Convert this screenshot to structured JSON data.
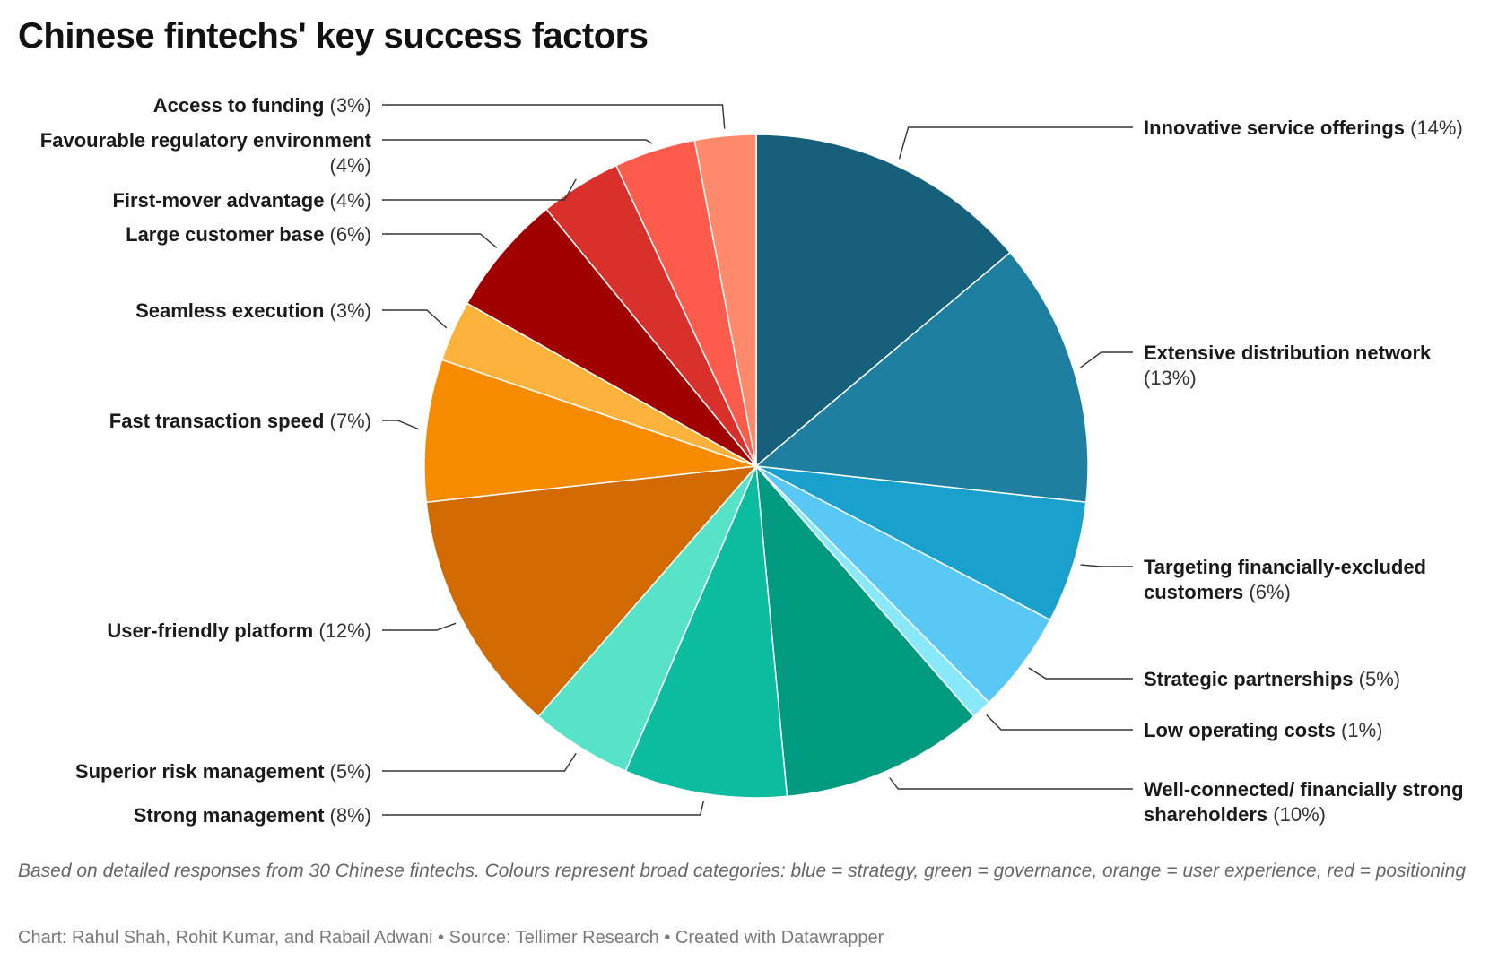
{
  "title": "Chinese fintechs' key success factors",
  "notes": "Based on detailed responses from 30 Chinese fintechs. Colours represent broad categories: blue = strategy, green = governance, orange = user experience, red = positioning",
  "credits": "Chart: Rahul Shah, Rohit Kumar, and Rabail Adwani • Source: Tellimer Research • Created with Datawrapper",
  "chart_data": {
    "type": "pie",
    "unit": "%",
    "slices": [
      {
        "label": "Innovative service offerings",
        "pct_text": "(14%)",
        "value": 14,
        "color": "#17607b"
      },
      {
        "label": "Extensive distribution network",
        "pct_text": "(13%)",
        "value": 13,
        "color": "#1f7fa0"
      },
      {
        "label": "Targeting financially-excluded customers",
        "pct_text": "(6%)",
        "value": 6,
        "color": "#1aa0cc"
      },
      {
        "label": "Strategic partnerships",
        "pct_text": "(5%)",
        "value": 5,
        "color": "#5ac8f5"
      },
      {
        "label": "Low operating costs",
        "pct_text": "(1%)",
        "value": 1,
        "color": "#8ae8fb"
      },
      {
        "label": "Well-connected/ financially strong shareholders",
        "pct_text": "(10%)",
        "value": 10,
        "color": "#009a80"
      },
      {
        "label": "Strong management",
        "pct_text": "(8%)",
        "value": 8,
        "color": "#0cbc9e"
      },
      {
        "label": "Superior risk management",
        "pct_text": "(5%)",
        "value": 5,
        "color": "#56e3c8"
      },
      {
        "label": "User-friendly platform",
        "pct_text": "(12%)",
        "value": 12,
        "color": "#d16a00"
      },
      {
        "label": "Fast transaction speed",
        "pct_text": "(7%)",
        "value": 7,
        "color": "#f78b00"
      },
      {
        "label": "Seamless execution",
        "pct_text": "(3%)",
        "value": 3,
        "color": "#fdb23c"
      },
      {
        "label": "Large customer base",
        "pct_text": "(6%)",
        "value": 6,
        "color": "#a00000"
      },
      {
        "label": "First-mover advantage",
        "pct_text": "(4%)",
        "value": 4,
        "color": "#d9302b"
      },
      {
        "label": "Favourable regulatory environment",
        "pct_text": "(4%)",
        "value": 4,
        "color": "#fd5b4b"
      },
      {
        "label": "Access to funding",
        "pct_text": "(3%)",
        "value": 3,
        "color": "#ff8a6b"
      }
    ]
  }
}
